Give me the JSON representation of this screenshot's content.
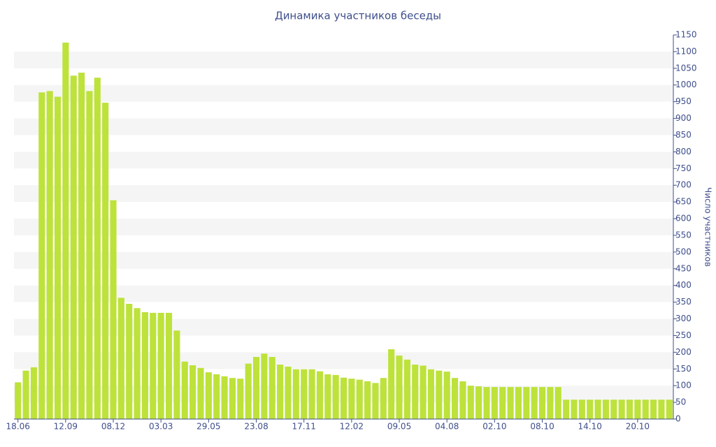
{
  "chart_data": {
    "type": "bar",
    "title": "Динамика участников беседы",
    "y_axis_label": "Число участников",
    "categories": [
      "18.06",
      null,
      null,
      null,
      null,
      null,
      "12.09",
      null,
      null,
      null,
      null,
      null,
      "08.12",
      null,
      null,
      null,
      null,
      null,
      "03.03",
      null,
      null,
      null,
      null,
      null,
      "29.05",
      null,
      null,
      null,
      null,
      null,
      "23.08",
      null,
      null,
      null,
      null,
      null,
      "17.11",
      null,
      null,
      null,
      null,
      null,
      "12.02",
      null,
      null,
      null,
      null,
      null,
      "09.05",
      null,
      null,
      null,
      null,
      null,
      "04.08",
      null,
      null,
      null,
      null,
      null,
      "02.10",
      null,
      null,
      null,
      null,
      null,
      "08.10",
      null,
      null,
      null,
      null,
      null,
      "14.10",
      null,
      null,
      null,
      null,
      null,
      "20.10",
      null,
      null,
      null,
      null
    ],
    "values": [
      110,
      145,
      155,
      978,
      982,
      965,
      1127,
      1028,
      1037,
      982,
      1022,
      947,
      655,
      363,
      345,
      332,
      320,
      318,
      318,
      318,
      265,
      172,
      161,
      153,
      140,
      134,
      128,
      123,
      121,
      166,
      186,
      196,
      186,
      163,
      157,
      149,
      149,
      149,
      143,
      134,
      132,
      124,
      121,
      118,
      113,
      108,
      123,
      209,
      190,
      178,
      163,
      160,
      149,
      145,
      142,
      123,
      113,
      100,
      98,
      96,
      96,
      96,
      96,
      96,
      96,
      96,
      96,
      96,
      96,
      58,
      58,
      58,
      58,
      58,
      58,
      58,
      58,
      58,
      58,
      58,
      58,
      58,
      58
    ],
    "color": "#bde23a",
    "ylim": [
      0,
      1150
    ],
    "yticks": [
      0,
      50,
      100,
      150,
      200,
      250,
      300,
      350,
      400,
      450,
      500,
      550,
      600,
      650,
      700,
      750,
      800,
      850,
      900,
      950,
      1000,
      1050,
      1100,
      1150
    ],
    "y_axis_side": "right",
    "grid": "bands"
  }
}
